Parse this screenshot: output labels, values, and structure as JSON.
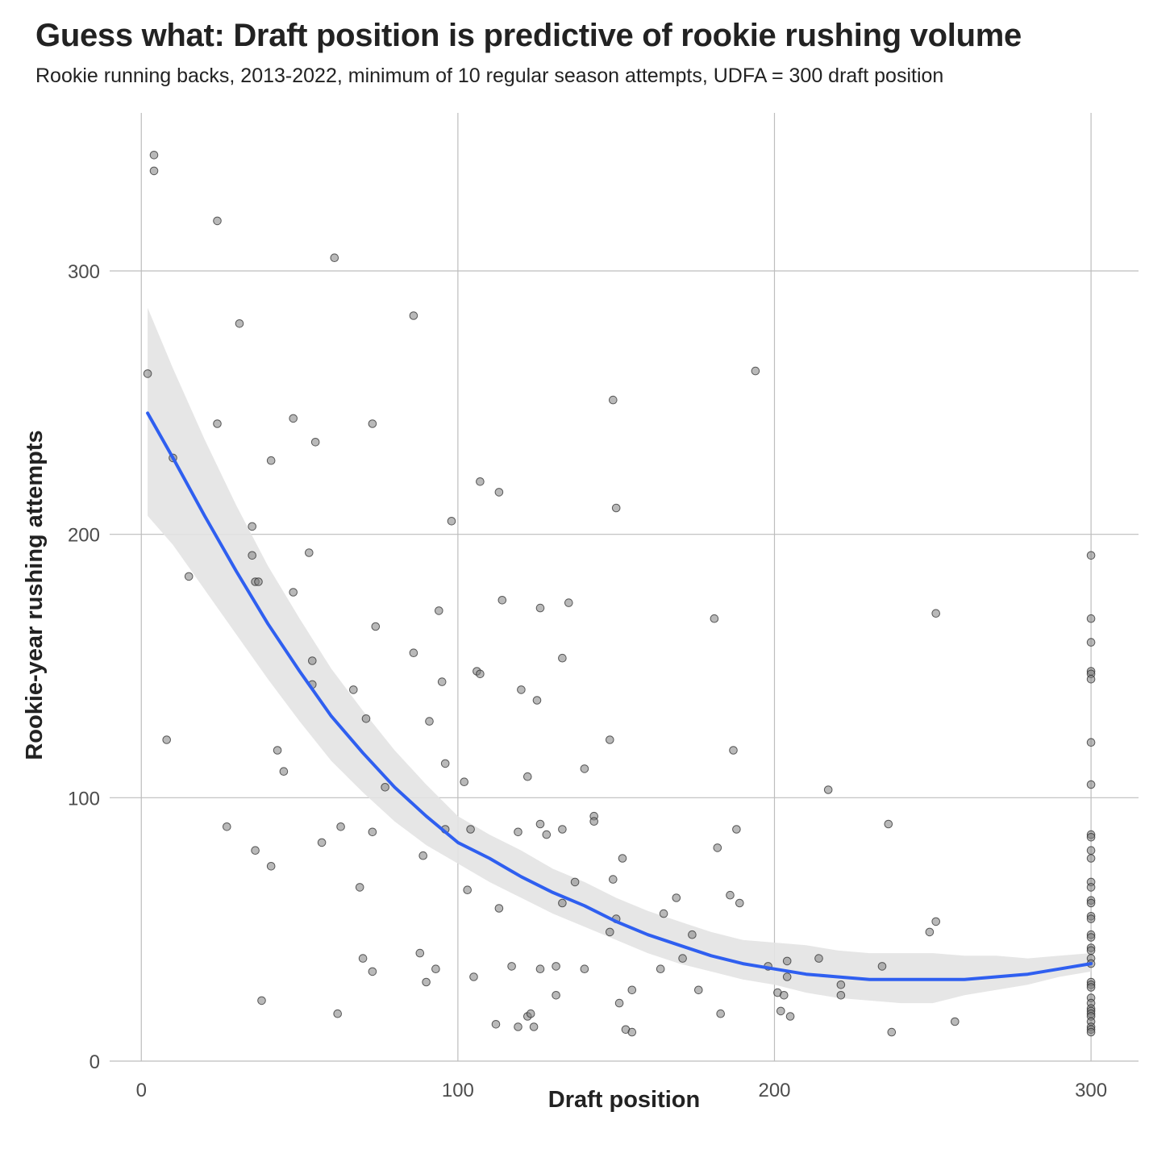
{
  "chart_data": {
    "type": "scatter",
    "title": "Guess what: Draft position is predictive of rookie rushing volume",
    "subtitle": "Rookie running backs, 2013-2022, minimum of 10 regular season attempts, UDFA = 300 draft position",
    "xlabel": "Draft position",
    "ylabel": "Rookie-year rushing attempts",
    "xlim": [
      -10,
      315
    ],
    "ylim": [
      0,
      360
    ],
    "x_ticks": [
      0,
      100,
      200,
      300
    ],
    "x_tick_labels": [
      "0",
      "100",
      "200",
      "300"
    ],
    "y_ticks": [
      0,
      100,
      200,
      300
    ],
    "y_tick_labels": [
      "0",
      "100",
      "200",
      "300"
    ],
    "grid": true,
    "colors": {
      "points": "#808080",
      "trend_line": "#2f5ff0",
      "confidence_band": "#e3e3e3",
      "grid": "#bdbdbd"
    },
    "points": [
      [
        4,
        344
      ],
      [
        4,
        338
      ],
      [
        2,
        261
      ],
      [
        24,
        319
      ],
      [
        24,
        242
      ],
      [
        31,
        280
      ],
      [
        10,
        229
      ],
      [
        15,
        184
      ],
      [
        8,
        122
      ],
      [
        27,
        89
      ],
      [
        35,
        203
      ],
      [
        35,
        192
      ],
      [
        36,
        182
      ],
      [
        37,
        182
      ],
      [
        36,
        80
      ],
      [
        38,
        23
      ],
      [
        41,
        228
      ],
      [
        41,
        74
      ],
      [
        43,
        118
      ],
      [
        45,
        110
      ],
      [
        48,
        244
      ],
      [
        48,
        178
      ],
      [
        53,
        193
      ],
      [
        54,
        152
      ],
      [
        54,
        143
      ],
      [
        55,
        235
      ],
      [
        57,
        83
      ],
      [
        61,
        305
      ],
      [
        62,
        18
      ],
      [
        63,
        89
      ],
      [
        67,
        141
      ],
      [
        69,
        66
      ],
      [
        70,
        39
      ],
      [
        71,
        130
      ],
      [
        73,
        242
      ],
      [
        73,
        87
      ],
      [
        73,
        34
      ],
      [
        74,
        165
      ],
      [
        77,
        104
      ],
      [
        86,
        283
      ],
      [
        86,
        155
      ],
      [
        88,
        41
      ],
      [
        89,
        78
      ],
      [
        90,
        30
      ],
      [
        91,
        129
      ],
      [
        93,
        35
      ],
      [
        94,
        171
      ],
      [
        95,
        144
      ],
      [
        96,
        113
      ],
      [
        96,
        88
      ],
      [
        98,
        205
      ],
      [
        102,
        106
      ],
      [
        103,
        65
      ],
      [
        104,
        88
      ],
      [
        105,
        32
      ],
      [
        106,
        148
      ],
      [
        107,
        220
      ],
      [
        107,
        147
      ],
      [
        112,
        14
      ],
      [
        113,
        216
      ],
      [
        113,
        58
      ],
      [
        114,
        175
      ],
      [
        117,
        36
      ],
      [
        119,
        87
      ],
      [
        119,
        13
      ],
      [
        120,
        141
      ],
      [
        122,
        108
      ],
      [
        122,
        17
      ],
      [
        123,
        18
      ],
      [
        124,
        13
      ],
      [
        125,
        137
      ],
      [
        126,
        172
      ],
      [
        126,
        90
      ],
      [
        126,
        35
      ],
      [
        128,
        86
      ],
      [
        131,
        36
      ],
      [
        131,
        25
      ],
      [
        133,
        153
      ],
      [
        133,
        60
      ],
      [
        133,
        88
      ],
      [
        135,
        174
      ],
      [
        137,
        68
      ],
      [
        140,
        111
      ],
      [
        140,
        35
      ],
      [
        143,
        93
      ],
      [
        143,
        91
      ],
      [
        148,
        122
      ],
      [
        148,
        49
      ],
      [
        149,
        251
      ],
      [
        149,
        69
      ],
      [
        150,
        210
      ],
      [
        150,
        54
      ],
      [
        151,
        22
      ],
      [
        152,
        77
      ],
      [
        153,
        12
      ],
      [
        155,
        27
      ],
      [
        155,
        11
      ],
      [
        164,
        35
      ],
      [
        165,
        56
      ],
      [
        169,
        62
      ],
      [
        171,
        39
      ],
      [
        174,
        48
      ],
      [
        176,
        27
      ],
      [
        181,
        168
      ],
      [
        182,
        81
      ],
      [
        183,
        18
      ],
      [
        186,
        63
      ],
      [
        187,
        118
      ],
      [
        188,
        88
      ],
      [
        189,
        60
      ],
      [
        194,
        262
      ],
      [
        198,
        36
      ],
      [
        201,
        26
      ],
      [
        202,
        19
      ],
      [
        203,
        25
      ],
      [
        204,
        38
      ],
      [
        204,
        32
      ],
      [
        205,
        17
      ],
      [
        214,
        39
      ],
      [
        217,
        103
      ],
      [
        221,
        29
      ],
      [
        221,
        25
      ],
      [
        234,
        36
      ],
      [
        236,
        90
      ],
      [
        237,
        11
      ],
      [
        249,
        49
      ],
      [
        251,
        170
      ],
      [
        251,
        53
      ],
      [
        257,
        15
      ],
      [
        300,
        192
      ],
      [
        300,
        168
      ],
      [
        300,
        159
      ],
      [
        300,
        148
      ],
      [
        300,
        147
      ],
      [
        300,
        145
      ],
      [
        300,
        121
      ],
      [
        300,
        105
      ],
      [
        300,
        86
      ],
      [
        300,
        85
      ],
      [
        300,
        80
      ],
      [
        300,
        77
      ],
      [
        300,
        68
      ],
      [
        300,
        66
      ],
      [
        300,
        61
      ],
      [
        300,
        60
      ],
      [
        300,
        55
      ],
      [
        300,
        54
      ],
      [
        300,
        48
      ],
      [
        300,
        47
      ],
      [
        300,
        43
      ],
      [
        300,
        42
      ],
      [
        300,
        39
      ],
      [
        300,
        37
      ],
      [
        300,
        30
      ],
      [
        300,
        29
      ],
      [
        300,
        28
      ],
      [
        300,
        24
      ],
      [
        300,
        22
      ],
      [
        300,
        20
      ],
      [
        300,
        19
      ],
      [
        300,
        18
      ],
      [
        300,
        17
      ],
      [
        300,
        15
      ],
      [
        300,
        13
      ],
      [
        300,
        12
      ],
      [
        300,
        11
      ]
    ],
    "trend": {
      "x": [
        2,
        10,
        20,
        30,
        40,
        50,
        60,
        70,
        80,
        90,
        100,
        110,
        120,
        130,
        140,
        150,
        160,
        170,
        180,
        190,
        200,
        210,
        220,
        230,
        240,
        250,
        260,
        270,
        280,
        290,
        300
      ],
      "y": [
        246,
        229,
        207,
        186,
        166,
        148,
        131,
        117,
        104,
        93,
        83,
        77,
        70,
        64,
        59,
        53,
        48,
        44,
        40,
        37,
        35,
        33,
        32,
        31,
        31,
        31,
        31,
        32,
        33,
        35,
        37
      ],
      "lower": [
        207,
        196,
        179,
        162,
        145,
        129,
        114,
        102,
        91,
        82,
        75,
        68,
        62,
        56,
        51,
        46,
        41,
        37,
        34,
        31,
        29,
        26,
        24,
        23,
        22,
        22,
        25,
        27,
        29,
        32,
        34
      ],
      "upper": [
        286,
        263,
        236,
        211,
        188,
        168,
        149,
        133,
        118,
        105,
        93,
        86,
        80,
        73,
        68,
        62,
        57,
        53,
        49,
        46,
        45,
        44,
        42,
        41,
        41,
        41,
        40,
        40,
        39,
        40,
        41
      ]
    }
  }
}
